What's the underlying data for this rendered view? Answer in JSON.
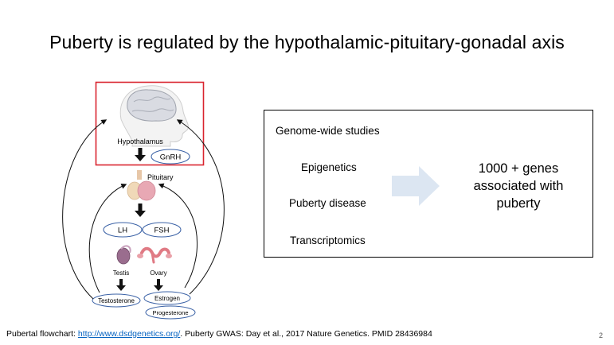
{
  "slide": {
    "title": "Puberty is regulated by the hypothalamic-pituitary-gonadal axis",
    "page_number": "2"
  },
  "diagram": {
    "hypothalamus": "Hypothalamus",
    "gnrh": "GnRH",
    "pituitary": "Pituitary",
    "lh": "LH",
    "fsh": "FSH",
    "testis": "Testis",
    "ovary": "Ovary",
    "testosterone": "Testosterone",
    "estrogen": "Estrogen",
    "progesterone": "Progesterone",
    "colors": {
      "highlight_border": "#d9242f",
      "pill_border": "#3b62a6",
      "pituitary": "#e8a8b4",
      "testis": "#9a6d8e",
      "ovary": "#e07a84"
    }
  },
  "studies": {
    "items": [
      "Genome-wide studies",
      "Epigenetics",
      "Puberty disease",
      "Transcriptomics"
    ],
    "result": [
      "1000 + genes",
      "associated with",
      "puberty"
    ],
    "arrow_color": "#dce6f2"
  },
  "footer": {
    "prefix": "Pubertal flowchart: ",
    "link": "http://www.dsdgenetics.org/",
    "suffix": ". Puberty GWAS: Day et al., 2017 Nature Genetics. PMID 28436984"
  }
}
